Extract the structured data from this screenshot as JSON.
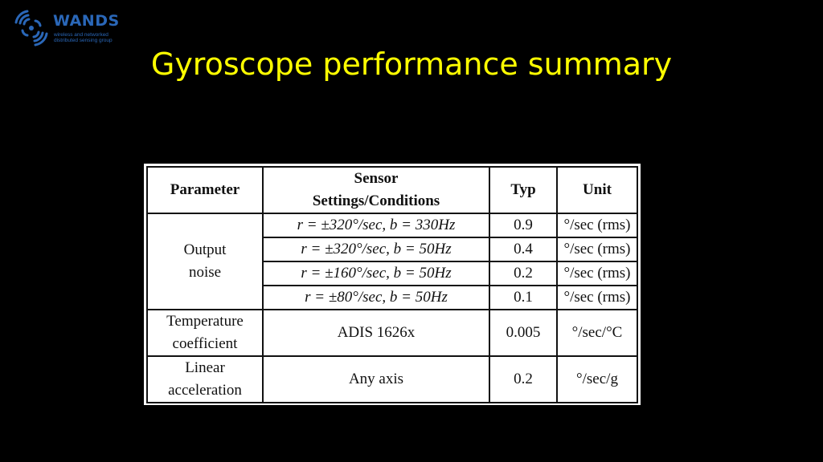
{
  "logo": {
    "name": "WANDS",
    "tagline_line1": "wireless and networked",
    "tagline_line2": "distributed sensing group",
    "color": "#2a67b8"
  },
  "slide": {
    "title": "Gyroscope performance summary",
    "title_color": "#ffff00",
    "background": "#000000"
  },
  "table": {
    "headers": {
      "parameter": "Parameter",
      "sensor_line1": "Sensor",
      "sensor_line2": "Settings/Conditions",
      "typ": "Typ",
      "unit": "Unit"
    },
    "output_noise": {
      "label_line1": "Output",
      "label_line2": "noise",
      "rows": [
        {
          "condition": "r = ±320°/sec, b = 330Hz",
          "typ": "0.9",
          "unit": "°/sec (rms)"
        },
        {
          "condition": "r = ±320°/sec, b = 50Hz",
          "typ": "0.4",
          "unit": "°/sec (rms)"
        },
        {
          "condition": "r = ±160°/sec, b = 50Hz",
          "typ": "0.2",
          "unit": "°/sec (rms)"
        },
        {
          "condition": "r = ±80°/sec, b = 50Hz",
          "typ": "0.1",
          "unit": "°/sec (rms)"
        }
      ]
    },
    "temperature": {
      "label_line1": "Temperature",
      "label_line2": "coefficient",
      "condition": "ADIS 1626x",
      "typ": "0.005",
      "unit": "°/sec/°C"
    },
    "linear": {
      "label_line1": "Linear",
      "label_line2": "acceleration",
      "condition": "Any axis",
      "typ": "0.2",
      "unit": "°/sec/g"
    }
  }
}
